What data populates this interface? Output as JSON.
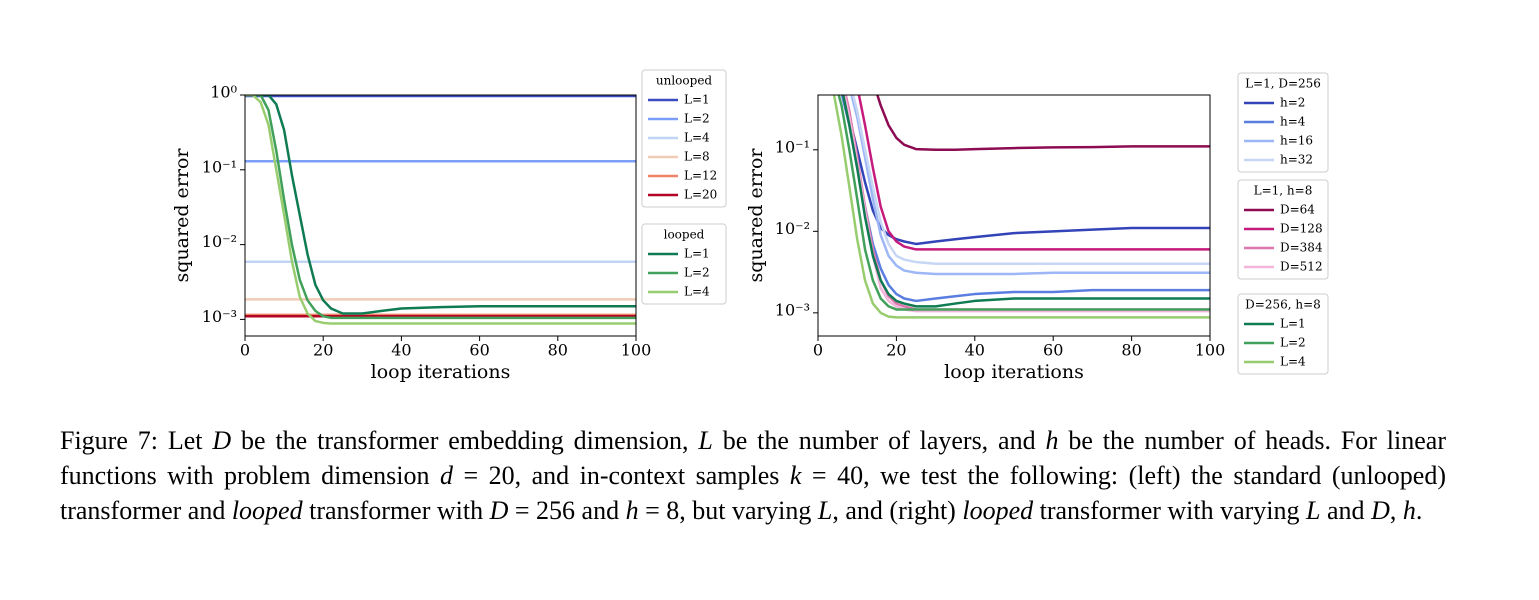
{
  "chart_data": [
    {
      "type": "line",
      "xlabel": "loop iterations",
      "ylabel": "squared error",
      "yscale": "log",
      "legend": "outside-right",
      "x": [
        0,
        2,
        4,
        6,
        8,
        10,
        12,
        14,
        16,
        18,
        20,
        22,
        25,
        30,
        35,
        40,
        50,
        60,
        70,
        80,
        90,
        100
      ],
      "xlim": [
        0,
        100
      ],
      "xticks": [
        0,
        20,
        40,
        60,
        80,
        100
      ],
      "ylim": [
        0.0006,
        1
      ],
      "yticks": [
        {
          "value": 1,
          "label": "10⁰"
        },
        {
          "value": 0.1,
          "label": "10⁻¹"
        },
        {
          "value": 0.01,
          "label": "10⁻²"
        },
        {
          "value": 0.001,
          "label": "10⁻³"
        }
      ],
      "legend_groups": [
        {
          "title": "unlooped",
          "series": [
            {
              "name": "L=1",
              "color": "#3b4cc0",
              "values": [
                0.97,
                0.97,
                0.97,
                0.97,
                0.97,
                0.97,
                0.97,
                0.97,
                0.97,
                0.97,
                0.97,
                0.97,
                0.97,
                0.97,
                0.97,
                0.97,
                0.97,
                0.97,
                0.97,
                0.97,
                0.97,
                0.97
              ]
            },
            {
              "name": "L=2",
              "color": "#7b9ff9",
              "values": [
                0.13,
                0.13,
                0.13,
                0.13,
                0.13,
                0.13,
                0.13,
                0.13,
                0.13,
                0.13,
                0.13,
                0.13,
                0.13,
                0.13,
                0.13,
                0.13,
                0.13,
                0.13,
                0.13,
                0.13,
                0.13,
                0.13
              ]
            },
            {
              "name": "L=4",
              "color": "#c0d4f5",
              "values": [
                0.0059,
                0.0059,
                0.0059,
                0.0059,
                0.0059,
                0.0059,
                0.0059,
                0.0059,
                0.0059,
                0.0059,
                0.0059,
                0.0059,
                0.0059,
                0.0059,
                0.0059,
                0.0059,
                0.0059,
                0.0059,
                0.0059,
                0.0059,
                0.0059,
                0.0059
              ]
            },
            {
              "name": "L=8",
              "color": "#f2cbb7",
              "values": [
                0.00185,
                0.00185,
                0.00185,
                0.00185,
                0.00185,
                0.00185,
                0.00185,
                0.00185,
                0.00185,
                0.00185,
                0.00185,
                0.00185,
                0.00185,
                0.00185,
                0.00185,
                0.00185,
                0.00185,
                0.00185,
                0.00185,
                0.00185,
                0.00185,
                0.00185
              ]
            },
            {
              "name": "L=12",
              "color": "#ee8468",
              "values": [
                0.00115,
                0.00115,
                0.00115,
                0.00115,
                0.00115,
                0.00115,
                0.00115,
                0.00115,
                0.00115,
                0.00115,
                0.00115,
                0.00115,
                0.00115,
                0.00115,
                0.00115,
                0.00115,
                0.00115,
                0.00115,
                0.00115,
                0.00115,
                0.00115,
                0.00115
              ]
            },
            {
              "name": "L=20",
              "color": "#b40426",
              "values": [
                0.0011,
                0.0011,
                0.0011,
                0.0011,
                0.0011,
                0.0011,
                0.0011,
                0.0011,
                0.0011,
                0.0011,
                0.0011,
                0.0011,
                0.0011,
                0.0011,
                0.0011,
                0.0011,
                0.0011,
                0.0011,
                0.0011,
                0.0011,
                0.0011,
                0.0011
              ]
            }
          ]
        },
        {
          "title": "looped",
          "series": [
            {
              "name": "L=1",
              "color": "#0f7b53",
              "values": [
                1,
                1,
                1,
                1,
                0.75,
                0.34,
                0.085,
                0.025,
                0.0074,
                0.0029,
                0.0018,
                0.0014,
                0.0012,
                0.0012,
                0.0013,
                0.0014,
                0.00146,
                0.0015,
                0.0015,
                0.0015,
                0.0015,
                0.0015
              ]
            },
            {
              "name": "L=2",
              "color": "#41a05a",
              "values": [
                1,
                1,
                1,
                0.63,
                0.18,
                0.04,
                0.01,
                0.0034,
                0.0018,
                0.0013,
                0.0011,
                0.00105,
                0.00105,
                0.00105,
                0.00105,
                0.00105,
                0.00105,
                0.00105,
                0.00105,
                0.00105,
                0.00105,
                0.00105
              ]
            },
            {
              "name": "L=4",
              "color": "#98cd6f",
              "values": [
                1,
                1,
                0.8,
                0.4,
                0.1,
                0.025,
                0.006,
                0.002,
                0.0012,
                0.00095,
                0.0009,
                0.00088,
                0.00088,
                0.00088,
                0.00088,
                0.00088,
                0.00088,
                0.00088,
                0.00088,
                0.00088,
                0.00088,
                0.00088
              ]
            }
          ]
        }
      ]
    },
    {
      "type": "line",
      "xlabel": "loop iterations",
      "ylabel": "squared error",
      "yscale": "log",
      "legend": "outside-right",
      "x": [
        0,
        2,
        4,
        6,
        8,
        10,
        12,
        14,
        16,
        18,
        20,
        22,
        25,
        30,
        35,
        40,
        50,
        60,
        70,
        80,
        90,
        100
      ],
      "xlim": [
        0,
        100
      ],
      "xticks": [
        0,
        20,
        40,
        60,
        80,
        100
      ],
      "ylim": [
        0.00052,
        0.47
      ],
      "yticks": [
        {
          "value": 0.1,
          "label": "10⁻¹"
        },
        {
          "value": 0.01,
          "label": "10⁻²"
        },
        {
          "value": 0.001,
          "label": "10⁻³"
        }
      ],
      "legend_groups": [
        {
          "title": "L=1, D=256",
          "series": [
            {
              "name": "h=2",
              "color": "#3344b8",
              "values": [
                1,
                1,
                1,
                0.6,
                0.25,
                0.1,
                0.04,
                0.018,
                0.011,
                0.009,
                0.008,
                0.0075,
                0.007,
                0.0075,
                0.008,
                0.0085,
                0.0095,
                0.01,
                0.0105,
                0.011,
                0.011,
                0.011
              ]
            },
            {
              "name": "h=4",
              "color": "#5a7de0",
              "values": [
                1,
                1,
                1,
                0.5,
                0.2,
                0.06,
                0.02,
                0.007,
                0.0035,
                0.0022,
                0.0017,
                0.0015,
                0.0014,
                0.0015,
                0.0016,
                0.0017,
                0.0018,
                0.0018,
                0.0019,
                0.0019,
                0.0019,
                0.0019
              ]
            },
            {
              "name": "h=16",
              "color": "#9db6f5",
              "values": [
                1,
                1,
                1,
                1,
                0.6,
                0.25,
                0.08,
                0.025,
                0.009,
                0.005,
                0.0038,
                0.0033,
                0.0031,
                0.003,
                0.003,
                0.003,
                0.003,
                0.0031,
                0.0031,
                0.0031,
                0.0031,
                0.0031
              ]
            },
            {
              "name": "h=32",
              "color": "#c6d6f4",
              "values": [
                1,
                1,
                1,
                1,
                0.7,
                0.3,
                0.1,
                0.035,
                0.013,
                0.007,
                0.005,
                0.0045,
                0.0042,
                0.004,
                0.004,
                0.004,
                0.004,
                0.004,
                0.004,
                0.004,
                0.004,
                0.004
              ]
            }
          ]
        },
        {
          "title": "L=1, h=8",
          "series": [
            {
              "name": "D=64",
              "color": "#8c0b52",
              "values": [
                1,
                1,
                1,
                1,
                1,
                1,
                1,
                0.7,
                0.35,
                0.2,
                0.14,
                0.115,
                0.102,
                0.1,
                0.1,
                0.102,
                0.105,
                0.107,
                0.108,
                0.11,
                0.11,
                0.11
              ]
            },
            {
              "name": "D=128",
              "color": "#c51b7d",
              "values": [
                1,
                1,
                1,
                1,
                1,
                0.6,
                0.2,
                0.06,
                0.02,
                0.01,
                0.0075,
                0.0065,
                0.006,
                0.006,
                0.006,
                0.006,
                0.006,
                0.006,
                0.006,
                0.006,
                0.006,
                0.006
              ]
            },
            {
              "name": "D=384",
              "color": "#de77ae",
              "values": [
                1,
                1,
                1,
                0.8,
                0.3,
                0.08,
                0.02,
                0.006,
                0.0025,
                0.0016,
                0.0013,
                0.0012,
                0.0011,
                0.0011,
                0.0011,
                0.0011,
                0.0011,
                0.0011,
                0.0011,
                0.0011,
                0.0011,
                0.0011
              ]
            },
            {
              "name": "D=512",
              "color": "#f1b6da",
              "values": [
                1,
                1,
                1,
                0.7,
                0.25,
                0.07,
                0.018,
                0.005,
                0.002,
                0.0014,
                0.0012,
                0.0011,
                0.00105,
                0.00105,
                0.00105,
                0.00105,
                0.00105,
                0.00105,
                0.00105,
                0.00105,
                0.00105,
                0.00105
              ]
            }
          ]
        },
        {
          "title": "D=256, h=8",
          "series": [
            {
              "name": "L=1",
              "color": "#0f7b53",
              "values": [
                1,
                1,
                1,
                0.6,
                0.2,
                0.06,
                0.015,
                0.005,
                0.0025,
                0.0017,
                0.0014,
                0.0013,
                0.0012,
                0.0012,
                0.0013,
                0.0014,
                0.0015,
                0.0015,
                0.0015,
                0.0015,
                0.0015,
                0.0015
              ]
            },
            {
              "name": "L=2",
              "color": "#41a05a",
              "values": [
                1,
                1,
                0.8,
                0.35,
                0.1,
                0.025,
                0.006,
                0.0025,
                0.0015,
                0.0012,
                0.0011,
                0.0011,
                0.0011,
                0.0011,
                0.0011,
                0.0011,
                0.0011,
                0.0011,
                0.0011,
                0.0011,
                0.0011,
                0.0011
              ]
            },
            {
              "name": "L=4",
              "color": "#98cd6f",
              "values": [
                1,
                0.9,
                0.5,
                0.15,
                0.035,
                0.008,
                0.0025,
                0.0013,
                0.001,
                0.0009,
                0.00088,
                0.00088,
                0.00088,
                0.00088,
                0.00088,
                0.00088,
                0.00088,
                0.00088,
                0.00088,
                0.00088,
                0.00088,
                0.00088
              ]
            }
          ]
        }
      ]
    }
  ],
  "caption": [
    "Figure 7:",
    " Let ",
    "D",
    " be the transformer embedding dimension, ",
    "L",
    " be the number of layers, and ",
    "h",
    " be the number of heads. For linear functions with problem dimension ",
    "d",
    " = 20, and in-context samples ",
    "k",
    " = 40, we test the following: (left) the standard (unlooped) transformer and ",
    "looped",
    " transformer with ",
    "D",
    " = 256 and ",
    "h",
    " = 8, but varying ",
    "L",
    ", and (right) ",
    "looped",
    " transformer with varying ",
    "L",
    " and ",
    "D",
    ", ",
    "h",
    "."
  ]
}
